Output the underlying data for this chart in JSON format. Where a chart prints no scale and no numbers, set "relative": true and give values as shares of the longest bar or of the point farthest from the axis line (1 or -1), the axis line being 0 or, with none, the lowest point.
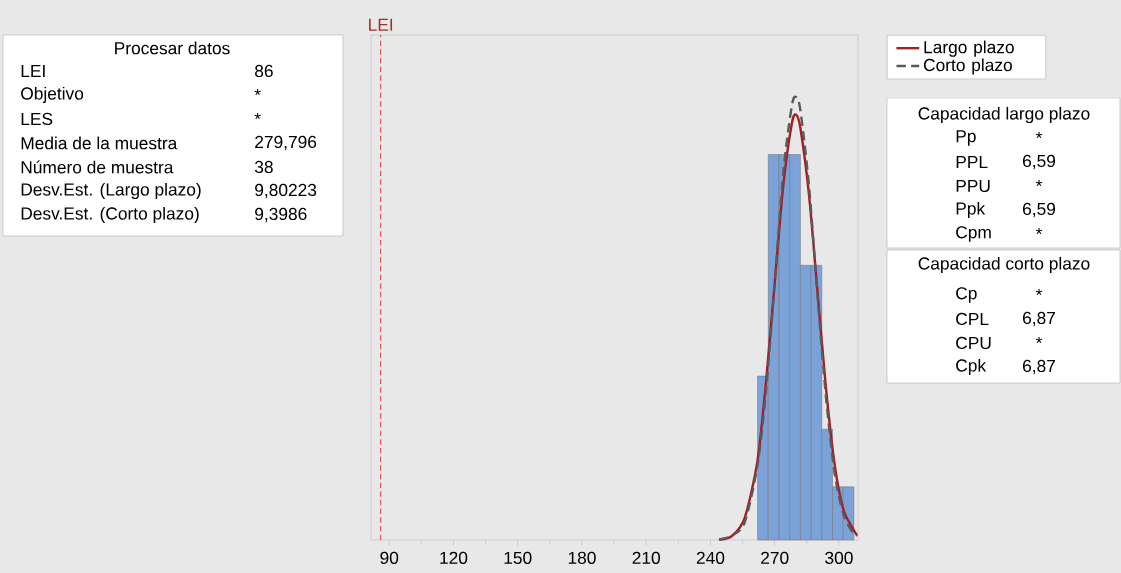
{
  "chart_data": [
    {
      "type": "other",
      "title": "Procesar datos",
      "annotations": [
        "LEI",
        "86",
        "Objetivo",
        "*",
        "LES",
        "*",
        "Media de la muestra",
        "279,796",
        "Número de muestra",
        "38",
        "Desv.Est. (Largo plazo)",
        "9,80223",
        "Desv.Est. (Corto plazo)",
        "9,3986"
      ]
    },
    {
      "type": "histogram",
      "relative": true,
      "color": "#7ba3d9",
      "bins": [
        262,
        267,
        272,
        277,
        282,
        287,
        292,
        297,
        302,
        307
      ],
      "values": [
        0.37,
        0.87,
        0.87,
        0.87,
        0.62,
        0.62,
        0.25,
        0.12,
        0.12
      ],
      "xlim": [
        81.5,
        308.9
      ],
      "xticks": [
        90,
        120,
        150,
        180,
        210,
        240,
        270,
        300
      ],
      "ref_lines": [
        {
          "axis": "x",
          "value": 86,
          "label": "LEI",
          "color": "#e8413a",
          "line_style": "dashed"
        }
      ],
      "legend": "top right",
      "series": [
        {
          "name": "Largo plazo",
          "type": "line",
          "color": "#a31d22",
          "line_style": "solid",
          "x": [
            244,
            250,
            256,
            262,
            266,
            270,
            274,
            278,
            280,
            282,
            286,
            290,
            294,
            298,
            302,
            306,
            308.5
          ],
          "values": [
            0.001,
            0.009,
            0.05,
            0.18,
            0.36,
            0.58,
            0.8,
            0.94,
            0.96,
            0.93,
            0.78,
            0.56,
            0.34,
            0.17,
            0.07,
            0.03,
            0.01
          ]
        },
        {
          "name": "Corto plazo",
          "type": "line",
          "color": "#5a5a5a",
          "line_style": "dashed",
          "x": [
            244,
            250,
            256,
            262,
            266,
            270,
            274,
            278,
            280,
            282,
            286,
            290,
            294,
            298,
            302,
            306,
            308.5
          ],
          "values": [
            0.001,
            0.01,
            0.04,
            0.17,
            0.34,
            0.58,
            0.83,
            0.98,
            1.0,
            0.97,
            0.8,
            0.55,
            0.32,
            0.15,
            0.06,
            0.02,
            0.01
          ]
        }
      ]
    },
    {
      "type": "other",
      "title": "Capacidad largo plazo",
      "annotations": [
        "Pp",
        "*",
        "PPL",
        "6,59",
        "PPU",
        "*",
        "Ppk",
        "6,59",
        "Cpm",
        "*"
      ]
    },
    {
      "type": "other",
      "title": "Capacidad corto plazo",
      "annotations": [
        "Cp",
        "*",
        "CPL",
        "6,87",
        "CPU",
        "*",
        "Cpk",
        "6,87"
      ]
    }
  ]
}
